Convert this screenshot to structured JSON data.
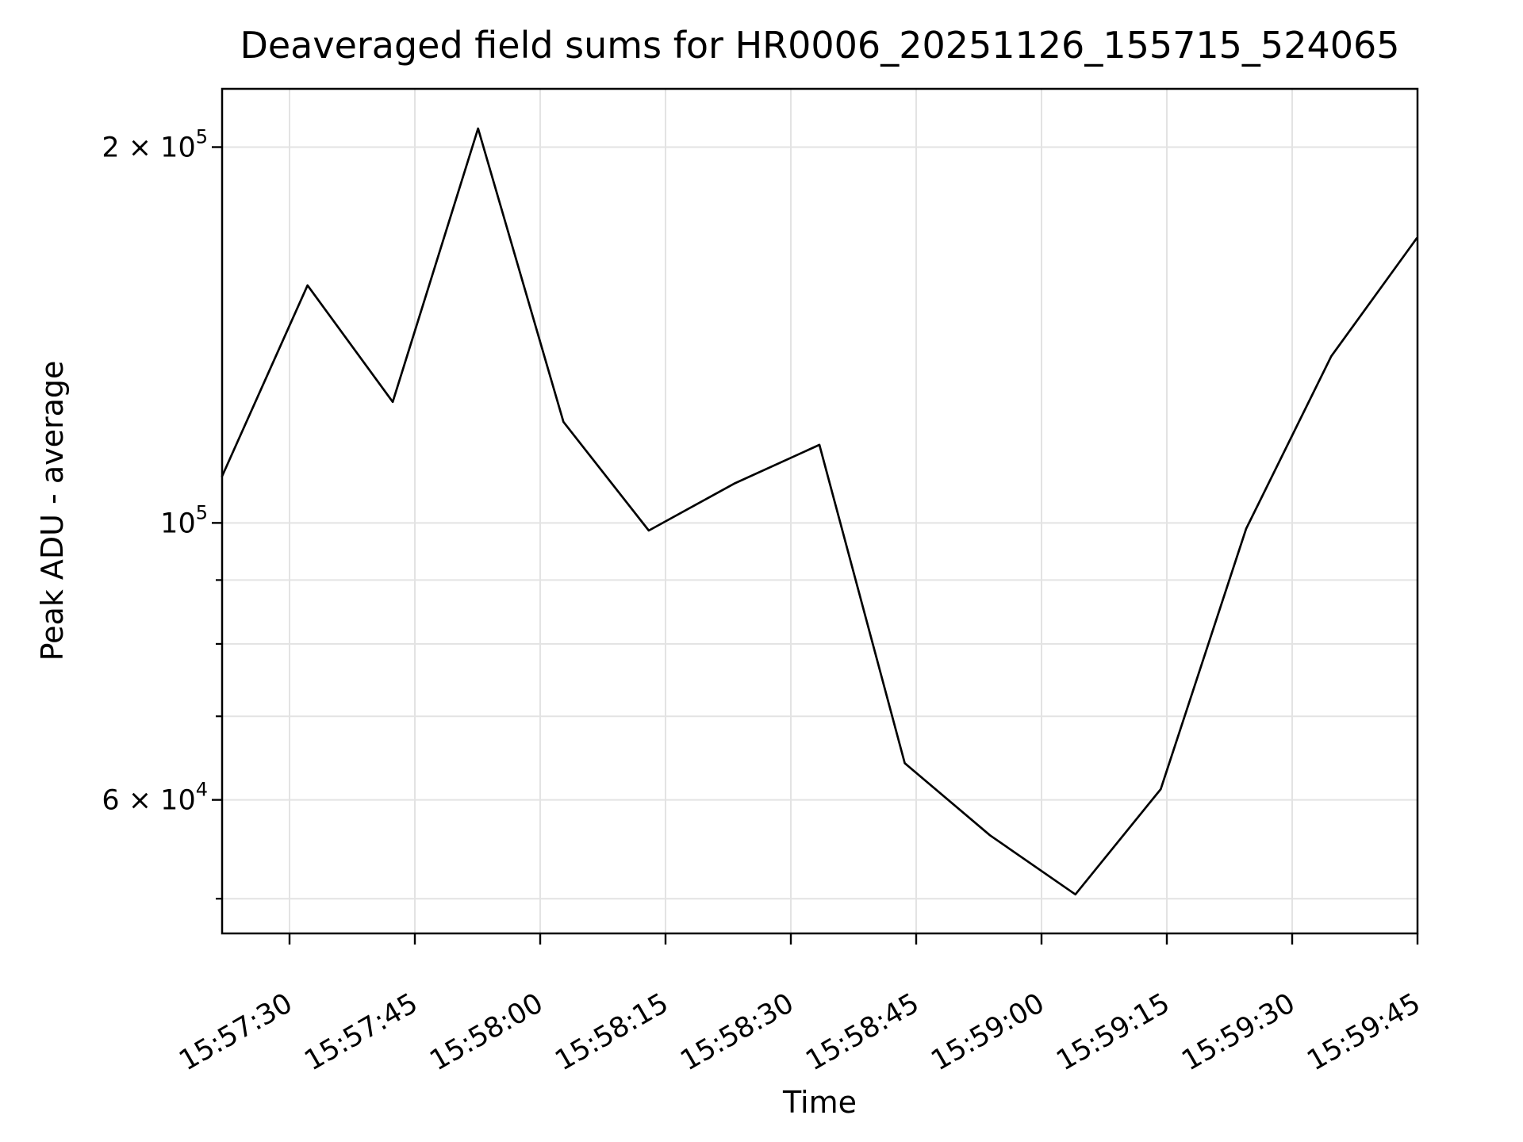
{
  "title": "Deaveraged field sums for HR0006_20251126_155715_524065",
  "axes": {
    "xlabel": "Time",
    "ylabel": "Peak ADU - average"
  },
  "colors": {
    "line": "#000000",
    "grid": "#e3e3e3",
    "frame": "#000000",
    "text": "#000000",
    "background": "#ffffff"
  },
  "chart_data": {
    "type": "line",
    "title": "Deaveraged field sums for HR0006_20251126_155715_524065",
    "xlabel": "Time",
    "ylabel": "Peak ADU - average",
    "yscale": "log",
    "ylim": [
      46900,
      222700
    ],
    "grid": true,
    "legend": false,
    "x_origin_time": "15:57:30",
    "xlim_seconds": [
      -8.07,
      135
    ],
    "x_ticks": [
      {
        "s": 0,
        "label": "15:57:30"
      },
      {
        "s": 15,
        "label": "15:57:45"
      },
      {
        "s": 30,
        "label": "15:58:00"
      },
      {
        "s": 45,
        "label": "15:58:15"
      },
      {
        "s": 60,
        "label": "15:58:30"
      },
      {
        "s": 75,
        "label": "15:58:45"
      },
      {
        "s": 90,
        "label": "15:59:00"
      },
      {
        "s": 105,
        "label": "15:59:15"
      },
      {
        "s": 120,
        "label": "15:59:30"
      },
      {
        "s": 135,
        "label": "15:59:45"
      }
    ],
    "y_major_ticks": [
      {
        "value": 200000,
        "base": "2 × 10",
        "exp": "5",
        "display": "2 × 10⁵"
      },
      {
        "value": 100000,
        "base": "10",
        "exp": "5",
        "display": "10⁵"
      },
      {
        "value": 60000,
        "base": "6 × 10",
        "exp": "4",
        "display": "6 × 10⁴"
      }
    ],
    "y_minor_tick_values": [
      50000,
      70000,
      80000,
      90000
    ],
    "series": [
      {
        "name": "Peak ADU - average",
        "color": "#000000",
        "points": [
          {
            "time": "15:57:22",
            "s": -8.07,
            "value": 109000
          },
          {
            "time": "15:57:32",
            "s": 2.15,
            "value": 155000
          },
          {
            "time": "15:57:42",
            "s": 12.35,
            "value": 125000
          },
          {
            "time": "15:57:53",
            "s": 22.57,
            "value": 207000
          },
          {
            "time": "15:58:03",
            "s": 32.78,
            "value": 120500
          },
          {
            "time": "15:58:13",
            "s": 43.0,
            "value": 98600
          },
          {
            "time": "15:58:23",
            "s": 53.2,
            "value": 107500
          },
          {
            "time": "15:58:33",
            "s": 63.42,
            "value": 115500
          },
          {
            "time": "15:58:44",
            "s": 73.63,
            "value": 64200
          },
          {
            "time": "15:58:54",
            "s": 83.84,
            "value": 56200
          },
          {
            "time": "15:59:04",
            "s": 94.05,
            "value": 50400
          },
          {
            "time": "15:59:14",
            "s": 104.27,
            "value": 61200
          },
          {
            "time": "15:59:24",
            "s": 114.48,
            "value": 98900
          },
          {
            "time": "15:59:35",
            "s": 124.68,
            "value": 136000
          },
          {
            "time": "15:59:45",
            "s": 134.9,
            "value": 169000
          }
        ]
      }
    ]
  }
}
